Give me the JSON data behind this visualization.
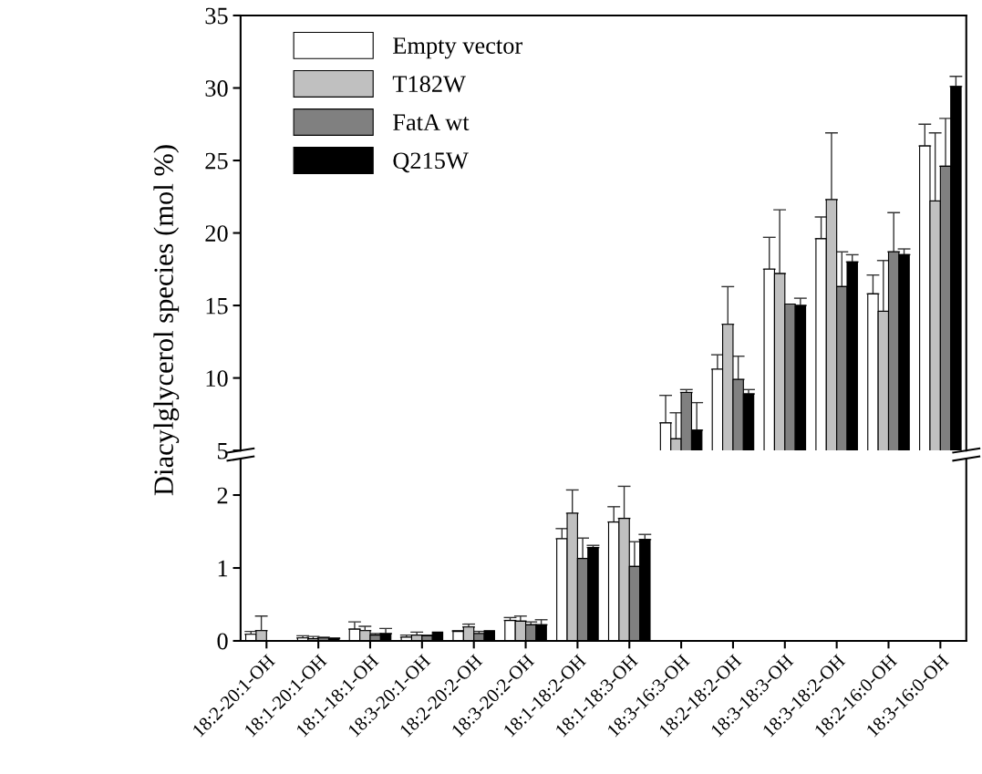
{
  "chart_data": [
    {
      "type": "bar",
      "ylabel": "Diacylglycerol species (mol %)",
      "legend": "top left",
      "tick_labels": "y",
      "categories": [
        null,
        null,
        null,
        null,
        null,
        null,
        null,
        null,
        null,
        null,
        null,
        null,
        null,
        null
      ],
      "ylim": [
        5,
        35
      ],
      "yticks": [
        5,
        10,
        15,
        20,
        25,
        30,
        35
      ],
      "series": [
        {
          "name": "Empty vector",
          "color": "#ffffff",
          "values": [
            null,
            null,
            null,
            null,
            null,
            null,
            null,
            null,
            6.9,
            10.6,
            17.5,
            19.6,
            15.8,
            26.0
          ],
          "errors": [
            null,
            null,
            null,
            null,
            null,
            null,
            null,
            null,
            [
              6.9,
              8.8
            ],
            [
              10.6,
              11.6
            ],
            [
              17.5,
              19.7
            ],
            [
              19.6,
              21.1
            ],
            [
              15.8,
              17.1
            ],
            [
              26.0,
              27.5
            ]
          ]
        },
        {
          "name": "T182W",
          "color": "#c0c0c0",
          "values": [
            null,
            null,
            null,
            null,
            null,
            null,
            null,
            null,
            5.8,
            13.7,
            17.2,
            22.3,
            14.6,
            22.2
          ],
          "errors": [
            null,
            null,
            null,
            null,
            null,
            null,
            null,
            null,
            [
              5.8,
              7.6
            ],
            [
              13.7,
              16.3
            ],
            [
              17.2,
              21.6
            ],
            [
              22.3,
              26.9
            ],
            [
              14.6,
              18.1
            ],
            [
              22.2,
              26.9
            ]
          ]
        },
        {
          "name": "FatA wt",
          "color": "#808080",
          "values": [
            null,
            null,
            null,
            null,
            null,
            null,
            null,
            null,
            9.0,
            9.9,
            15.1,
            16.3,
            18.7,
            24.6
          ],
          "errors": [
            null,
            null,
            null,
            null,
            null,
            null,
            null,
            null,
            [
              9.0,
              9.2
            ],
            [
              9.9,
              11.5
            ],
            null,
            [
              16.3,
              18.7
            ],
            [
              18.7,
              21.4
            ],
            [
              24.6,
              27.9
            ]
          ]
        },
        {
          "name": "Q215W",
          "color": "#000000",
          "values": [
            null,
            null,
            null,
            null,
            null,
            null,
            null,
            null,
            6.4,
            8.9,
            15.0,
            18.0,
            18.5,
            30.1
          ],
          "errors": [
            null,
            null,
            null,
            null,
            null,
            null,
            null,
            null,
            [
              6.4,
              8.3
            ],
            [
              8.9,
              9.2
            ],
            [
              15.0,
              15.5
            ],
            [
              18.0,
              18.5
            ],
            [
              18.5,
              18.9
            ],
            [
              30.1,
              30.8
            ]
          ]
        }
      ]
    },
    {
      "type": "bar",
      "categories": [
        "18:2-20:1-OH",
        "18:1-20:1-OH",
        "18:1-18:1-OH",
        "18:3-20:1-OH",
        "18:2-20:2-OH",
        "18:3-20:2-OH",
        "18:1-18:2-OH",
        "18:1-18:3-OH",
        "18:3-16:3-OH",
        "18:2-18:2-OH",
        "18:3-18:3-OH",
        "18:3-18:2-OH",
        "18:2-16:0-OH",
        "18:3-16:0-OH"
      ],
      "ylim": [
        0,
        2.5
      ],
      "yticks": [
        0,
        1,
        2
      ],
      "series": [
        {
          "color": "#ffffff",
          "values": [
            0.09,
            0.04,
            0.16,
            0.05,
            0.13,
            0.28,
            1.4,
            1.63,
            null,
            null,
            null,
            null,
            null,
            null
          ],
          "errors": [
            [
              0.09,
              0.13
            ],
            [
              0.04,
              0.07
            ],
            [
              0.16,
              0.26
            ],
            [
              0.05,
              0.08
            ],
            [
              0.13,
              0.14
            ],
            [
              0.28,
              0.32
            ],
            [
              1.4,
              1.54
            ],
            [
              1.63,
              1.84
            ],
            null,
            null,
            null,
            null,
            null,
            null
          ]
        },
        {
          "color": "#c0c0c0",
          "values": [
            0.14,
            0.03,
            0.14,
            0.08,
            0.19,
            0.27,
            1.75,
            1.68,
            null,
            null,
            null,
            null,
            null,
            null
          ],
          "errors": [
            [
              0.14,
              0.34
            ],
            [
              0.03,
              0.06
            ],
            [
              0.14,
              0.2
            ],
            [
              0.08,
              0.12
            ],
            [
              0.19,
              0.23
            ],
            [
              0.27,
              0.34
            ],
            [
              1.75,
              2.07
            ],
            [
              1.68,
              2.12
            ],
            null,
            null,
            null,
            null,
            null,
            null
          ]
        },
        {
          "color": "#808080",
          "values": [
            null,
            0.04,
            0.08,
            0.07,
            0.1,
            0.22,
            1.13,
            1.02,
            null,
            null,
            null,
            null,
            null,
            null
          ],
          "errors": [
            null,
            [
              0.04,
              0.05
            ],
            [
              0.08,
              0.1
            ],
            [
              0.07,
              0.08
            ],
            [
              0.1,
              0.13
            ],
            [
              0.22,
              0.26
            ],
            [
              1.13,
              1.41
            ],
            [
              1.02,
              1.36
            ],
            null,
            null,
            null,
            null,
            null,
            null
          ]
        },
        {
          "color": "#000000",
          "values": [
            null,
            0.03,
            0.1,
            0.12,
            0.14,
            0.22,
            1.28,
            1.39,
            null,
            null,
            null,
            null,
            null,
            null
          ],
          "errors": [
            null,
            [
              0.03,
              0.04
            ],
            [
              0.1,
              0.17
            ],
            null,
            null,
            [
              0.22,
              0.29
            ],
            [
              1.28,
              1.31
            ],
            [
              1.39,
              1.46
            ],
            null,
            null,
            null,
            null,
            null,
            null
          ]
        }
      ]
    }
  ]
}
